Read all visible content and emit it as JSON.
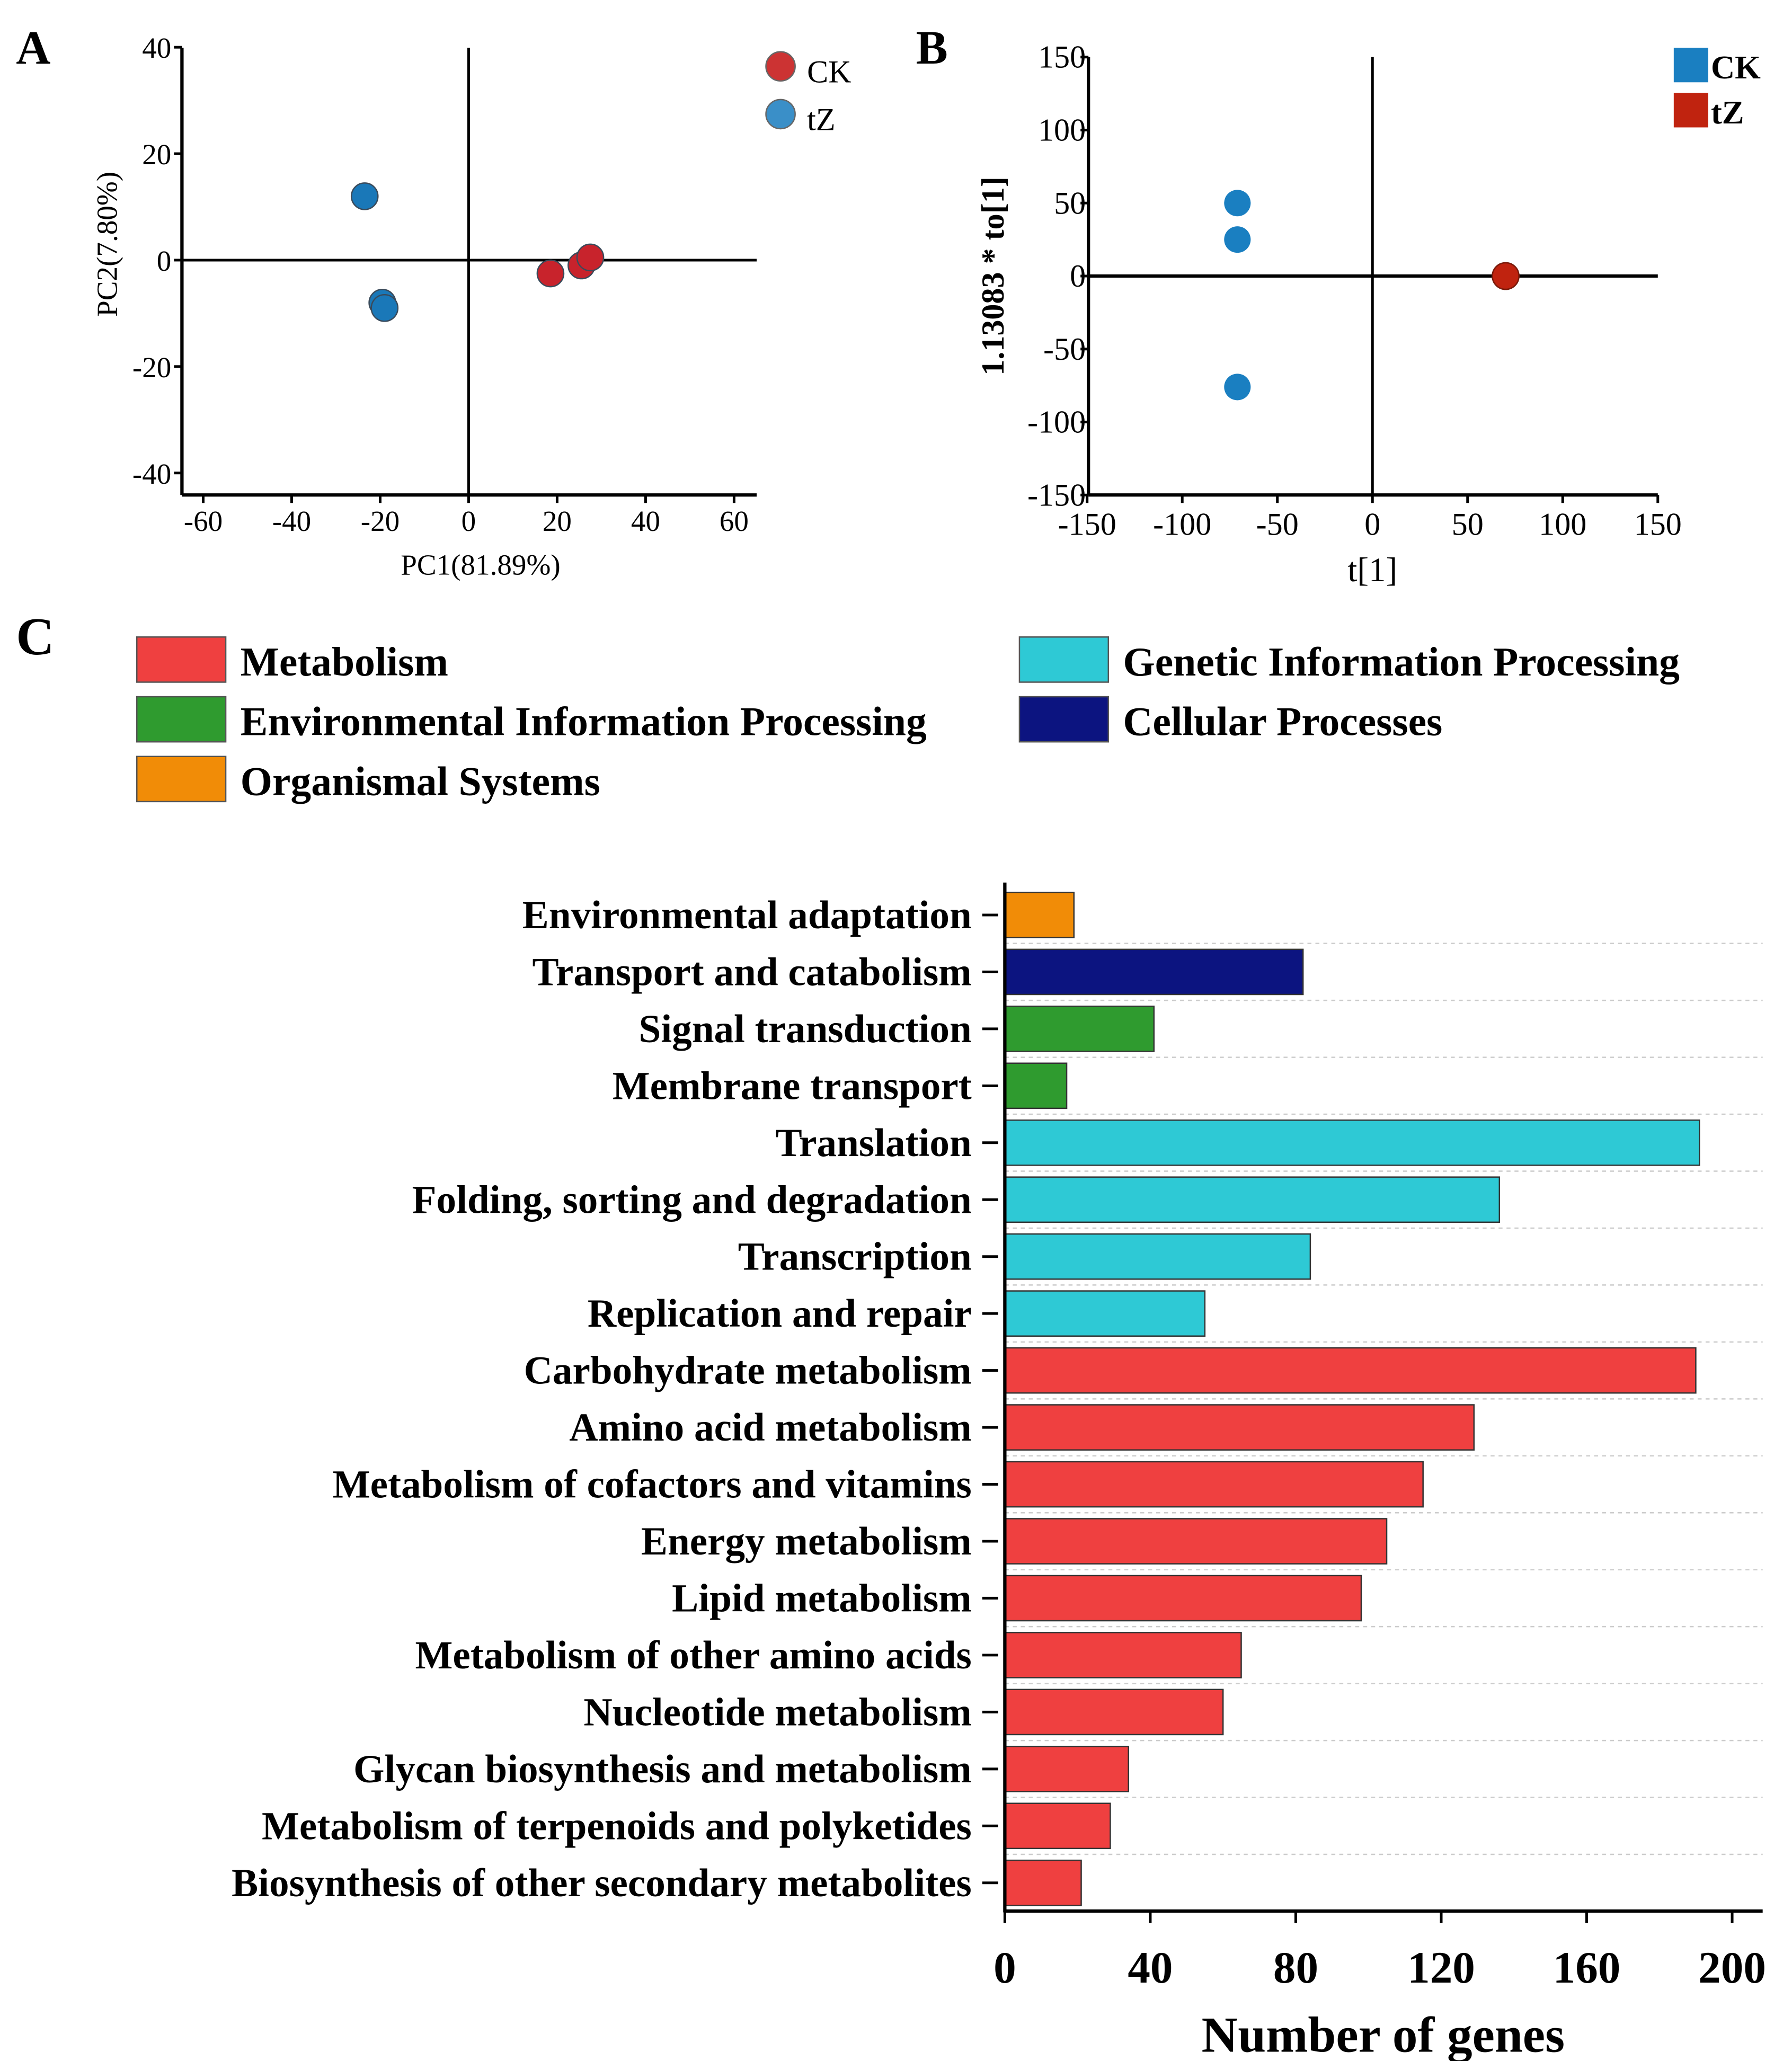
{
  "chart_data": [
    {
      "panel": "A",
      "type": "scatter",
      "xlabel": "PC1(81.89%)",
      "ylabel": "PC2(7.80%)",
      "xlim": [
        -65,
        65
      ],
      "ylim": [
        -44,
        40
      ],
      "xticks": [
        -60,
        -40,
        -20,
        0,
        20,
        40,
        60
      ],
      "yticks": [
        40,
        20,
        0,
        -20,
        -40
      ],
      "legend_position": "top-right",
      "series": [
        {
          "name": "CK",
          "color": "#c8232c",
          "points": [
            [
              18.5,
              -2.5
            ],
            [
              25.5,
              -1
            ],
            [
              27.5,
              0.5
            ]
          ]
        },
        {
          "name": "tZ",
          "color": "#1a78b8",
          "points": [
            [
              -23.5,
              12
            ],
            [
              -19.5,
              -8
            ],
            [
              -19,
              -9
            ]
          ]
        }
      ]
    },
    {
      "panel": "B",
      "type": "scatter",
      "xlabel": "t[1]",
      "ylabel": "1.13083 * to[1]",
      "xlim": [
        -150,
        150
      ],
      "ylim": [
        -150,
        150
      ],
      "xticks": [
        -150,
        -100,
        -50,
        0,
        50,
        100,
        150
      ],
      "yticks": [
        150,
        100,
        50,
        0,
        -50,
        -100,
        -150
      ],
      "legend_position": "top-right",
      "series": [
        {
          "name": "CK",
          "color": "#1a7fc1",
          "points": [
            [
              -71,
              50
            ],
            [
              -71,
              25
            ],
            [
              -71,
              -76
            ]
          ]
        },
        {
          "name": "tZ",
          "color": "#c0230f",
          "points": [
            [
              70,
              0
            ],
            [
              70,
              0
            ],
            [
              70,
              0
            ]
          ]
        }
      ]
    },
    {
      "panel": "C",
      "type": "bar",
      "orientation": "horizontal",
      "xlabel": "Number of genes",
      "xlim": [
        0,
        205
      ],
      "xticks": [
        0,
        40,
        80,
        120,
        160,
        200
      ],
      "legend": [
        {
          "name": "Metabolism",
          "color": "#ef4040"
        },
        {
          "name": "Genetic Information Processing",
          "color": "#2ec9d5"
        },
        {
          "name": "Environmental Information Processing",
          "color": "#2f9b2f"
        },
        {
          "name": "Cellular Processes",
          "color": "#0c1480"
        },
        {
          "name": "Organismal Systems",
          "color": "#f18c07"
        }
      ],
      "categories": [
        "Environmental adaptation",
        "Transport and catabolism",
        "Signal transduction",
        "Membrane transport",
        "Translation",
        "Folding, sorting and degradation",
        "Transcription",
        "Replication and repair",
        "Carbohydrate metabolism",
        "Amino acid metabolism",
        "Metabolism of cofactors and vitamins",
        "Energy metabolism",
        "Lipid metabolism",
        "Metabolism of other amino acids",
        "Nucleotide metabolism",
        "Glycan biosynthesis and metabolism",
        "Metabolism of terpenoids and polyketides",
        "Biosynthesis of other secondary metabolites"
      ],
      "values": [
        19,
        82,
        41,
        17,
        191,
        136,
        84,
        55,
        190,
        129,
        115,
        105,
        98,
        65,
        60,
        34,
        29,
        21
      ],
      "groups": [
        4,
        3,
        2,
        2,
        1,
        1,
        1,
        1,
        0,
        0,
        0,
        0,
        0,
        0,
        0,
        0,
        0,
        0
      ]
    }
  ],
  "panel_labels": [
    "A",
    "B",
    "C"
  ]
}
